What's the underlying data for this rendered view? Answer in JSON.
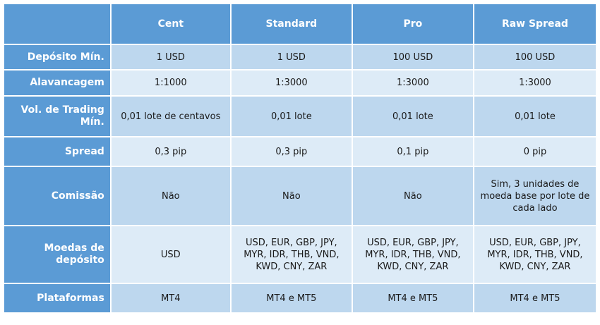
{
  "columns": [
    "",
    "Cent",
    "Standard",
    "Pro",
    "Raw Spread"
  ],
  "rows": [
    {
      "label": "Depósito Mín.",
      "values": [
        [
          "1 USD"
        ],
        [
          "1 USD"
        ],
        [
          "100 USD"
        ],
        [
          "100 USD"
        ]
      ]
    },
    {
      "label": "Alavancagem",
      "values": [
        [
          "1:1000"
        ],
        [
          "1:3000"
        ],
        [
          "1:3000"
        ],
        [
          "1:3000"
        ]
      ]
    },
    {
      "label_lines": [
        "Vol. de Trading",
        "Mín."
      ],
      "values": [
        [
          "0,01 lote de centavos"
        ],
        [
          "0,01 lote"
        ],
        [
          "0,01 lote"
        ],
        [
          "0,01 lote"
        ]
      ]
    },
    {
      "label": "Spread",
      "values": [
        [
          "0,3 pip"
        ],
        [
          "0,3 pip"
        ],
        [
          "0,1 pip"
        ],
        [
          "0 pip"
        ]
      ]
    },
    {
      "label": "Comissão",
      "values": [
        [
          "Não"
        ],
        [
          "Não"
        ],
        [
          "Não"
        ],
        [
          "Sim, 3 unidades de",
          "moeda base por lote de",
          "cada lado"
        ]
      ]
    },
    {
      "label_lines": [
        "Moedas de",
        "depósito"
      ],
      "values": [
        [
          "USD"
        ],
        [
          "USD, EUR, GBP, JPY,",
          "MYR, IDR, THB, VND,",
          "KWD, CNY, ZAR"
        ],
        [
          "USD, EUR, GBP, JPY,",
          "MYR, IDR, THB, VND,",
          "KWD, CNY, ZAR"
        ],
        [
          "USD, EUR, GBP, JPY,",
          "MYR, IDR, THB, VND,",
          "KWD, CNY, ZAR"
        ]
      ]
    },
    {
      "label": "Plataformas",
      "values": [
        [
          "MT4"
        ],
        [
          "MT4 e MT5"
        ],
        [
          "MT4 e MT5"
        ],
        [
          "MT4 e MT5"
        ]
      ]
    }
  ],
  "colors": {
    "header": "#5b9bd5",
    "row_dark": "#bdd7ee",
    "row_light": "#ddebf7"
  }
}
